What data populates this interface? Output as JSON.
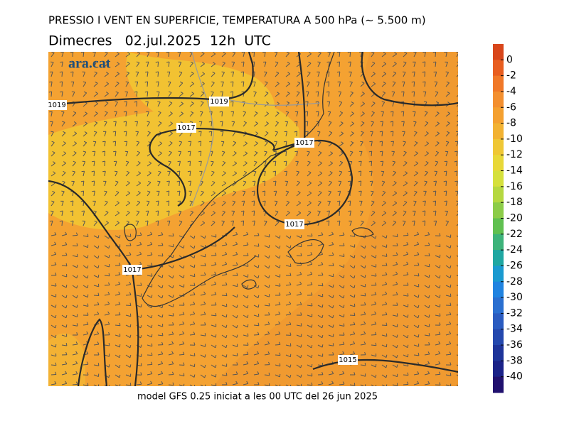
{
  "header": {
    "title": "PRESSIO I VENT EN SUPERFICIE, TEMPERATURA A 500 hPa (~ 5.500 m)",
    "subtitle": "Dimecres   02.jul.2025  12h  UTC"
  },
  "logo": "ara.cat",
  "isobar_labels": [
    1019,
    1019,
    1017,
    1017,
    1017,
    1017,
    1015
  ],
  "footer": "model GFS 0.25 iniciat a les 00 UTC del 26 jun 2025",
  "colorbar": {
    "ticks": [
      0,
      -2,
      -4,
      -6,
      -8,
      -10,
      -12,
      -14,
      -16,
      -18,
      -20,
      -22,
      -24,
      -26,
      -28,
      -30,
      -32,
      -34,
      -36,
      -38,
      -40
    ],
    "colors": [
      "#d8461b",
      "#e85e20",
      "#f07828",
      "#f38f2f",
      "#f4a030",
      "#f2b232",
      "#efc735",
      "#e8d838",
      "#d5e03c",
      "#b5d840",
      "#8ccc48",
      "#60c050",
      "#3db37a",
      "#1fa7a2",
      "#1a9ad0",
      "#2083e0",
      "#2a6fd0",
      "#2a5bc0",
      "#2448ae",
      "#1e349a",
      "#1a2288",
      "#20106e"
    ]
  }
}
